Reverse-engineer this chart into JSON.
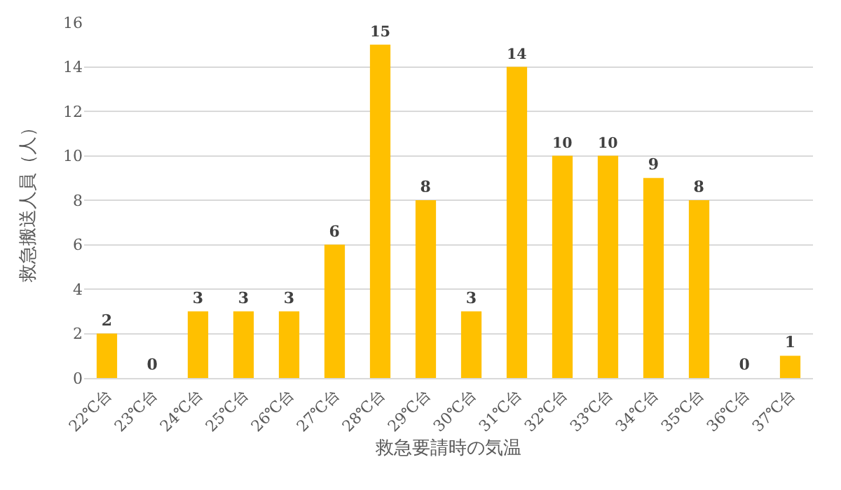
{
  "chart_data": {
    "type": "bar",
    "xlabel": "救急要請時の気温",
    "ylabel": "救急搬送人員（人）",
    "categories": [
      "22℃台",
      "23℃台",
      "24℃台",
      "25℃台",
      "26℃台",
      "27℃台",
      "28℃台",
      "29℃台",
      "30℃台",
      "31℃台",
      "32℃台",
      "33℃台",
      "34℃台",
      "35℃台",
      "36℃台",
      "37℃台"
    ],
    "values": [
      2,
      0,
      3,
      3,
      3,
      6,
      15,
      8,
      3,
      14,
      10,
      10,
      9,
      8,
      0,
      1
    ],
    "color": "#ffc000",
    "ylim": [
      0,
      16
    ],
    "yticks": [
      0,
      2,
      4,
      6,
      8,
      10,
      12,
      14,
      16
    ],
    "grid": "y",
    "data_labels": true
  }
}
